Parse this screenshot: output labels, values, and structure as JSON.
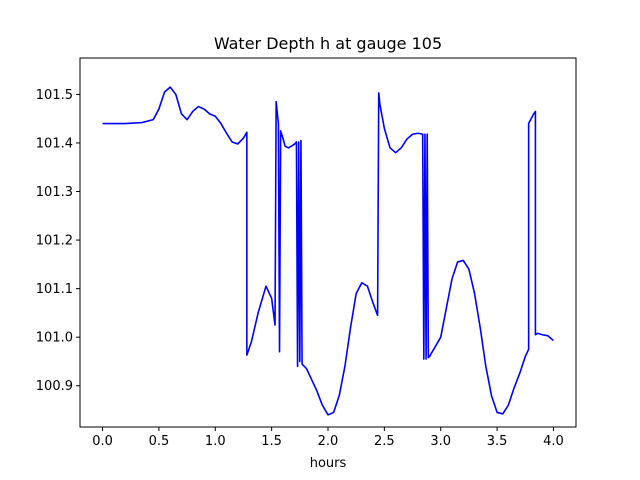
{
  "chart_data": {
    "type": "line",
    "title": "Water Depth h at gauge 105",
    "xlabel": "hours",
    "ylabel": "",
    "xlim": [
      -0.2,
      4.2
    ],
    "ylim": [
      100.815,
      101.575
    ],
    "xticks": [
      0.0,
      0.5,
      1.0,
      1.5,
      2.0,
      2.5,
      3.0,
      3.5,
      4.0
    ],
    "xtick_labels": [
      "0.0",
      "0.5",
      "1.0",
      "1.5",
      "2.0",
      "2.5",
      "3.0",
      "3.5",
      "4.0"
    ],
    "yticks": [
      100.9,
      101.0,
      101.1,
      101.2,
      101.3,
      101.4,
      101.5
    ],
    "ytick_labels": [
      "100.9",
      "101.0",
      "101.1",
      "101.2",
      "101.3",
      "101.4",
      "101.5"
    ],
    "grid": false,
    "legend": "none",
    "series": [
      {
        "color": "#0000ff",
        "x": [
          0.0,
          0.2,
          0.35,
          0.45,
          0.5,
          0.55,
          0.6,
          0.65,
          0.7,
          0.75,
          0.8,
          0.85,
          0.9,
          0.95,
          1.0,
          1.05,
          1.1,
          1.15,
          1.2,
          1.25,
          1.28,
          1.28,
          1.32,
          1.38,
          1.45,
          1.5,
          1.53,
          1.54,
          1.56,
          1.57,
          1.58,
          1.6,
          1.62,
          1.65,
          1.7,
          1.72,
          1.73,
          1.74,
          1.75,
          1.76,
          1.77,
          1.78,
          1.79,
          1.81,
          1.85,
          1.9,
          1.95,
          2.0,
          2.05,
          2.1,
          2.15,
          2.2,
          2.25,
          2.3,
          2.35,
          2.4,
          2.44,
          2.45,
          2.46,
          2.5,
          2.55,
          2.6,
          2.65,
          2.7,
          2.75,
          2.8,
          2.84,
          2.85,
          2.86,
          2.87,
          2.88,
          2.89,
          2.9,
          3.0,
          3.1,
          3.15,
          3.2,
          3.25,
          3.3,
          3.35,
          3.4,
          3.45,
          3.5,
          3.55,
          3.6,
          3.65,
          3.7,
          3.75,
          3.78,
          3.78,
          3.82,
          3.84,
          3.84,
          3.86,
          3.9,
          3.95,
          4.0
        ],
        "y": [
          101.44,
          101.44,
          101.442,
          101.448,
          101.47,
          101.505,
          101.515,
          101.5,
          101.46,
          101.448,
          101.465,
          101.475,
          101.47,
          101.46,
          101.455,
          101.44,
          101.42,
          101.402,
          101.398,
          101.41,
          101.422,
          100.963,
          100.99,
          101.05,
          101.105,
          101.08,
          101.025,
          101.485,
          101.44,
          100.97,
          101.425,
          101.41,
          101.393,
          101.39,
          101.397,
          101.402,
          100.94,
          101.402,
          100.95,
          101.405,
          100.945,
          100.942,
          100.94,
          100.935,
          100.915,
          100.89,
          100.86,
          100.84,
          100.845,
          100.88,
          100.94,
          101.02,
          101.09,
          101.112,
          101.105,
          101.07,
          101.045,
          101.503,
          101.48,
          101.43,
          101.39,
          101.38,
          101.39,
          101.408,
          101.418,
          101.42,
          101.418,
          100.955,
          101.418,
          100.955,
          101.418,
          100.958,
          100.96,
          101.0,
          101.12,
          101.155,
          101.158,
          101.14,
          101.09,
          101.02,
          100.94,
          100.88,
          100.845,
          100.842,
          100.86,
          100.895,
          100.925,
          100.96,
          100.975,
          101.44,
          101.458,
          101.465,
          101.005,
          101.008,
          101.005,
          101.003,
          100.993
        ]
      }
    ]
  }
}
